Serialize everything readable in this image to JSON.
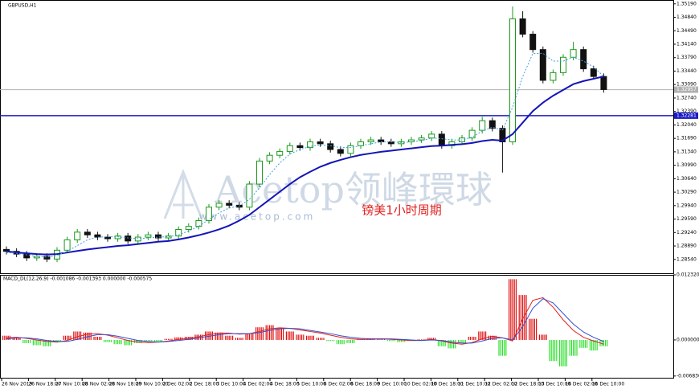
{
  "chart_data": [
    {
      "type": "candlestick",
      "title": "GBPUSD,H1",
      "open": [
        1.288,
        1.2875,
        1.2868,
        1.2858,
        1.2862,
        1.2855,
        1.2878,
        1.2905,
        1.2925,
        1.2918,
        1.2912,
        1.2908,
        1.2915,
        1.2902,
        1.2912,
        1.2918,
        1.291,
        1.2915,
        1.2932,
        1.294,
        1.2955,
        1.299,
        1.3,
        1.2995,
        1.299,
        1.305,
        1.311,
        1.3125,
        1.3135,
        1.315,
        1.3145,
        1.316,
        1.3155,
        1.314,
        1.313,
        1.315,
        1.316,
        1.3165,
        1.316,
        1.3155,
        1.316,
        1.3165,
        1.317,
        1.318,
        1.315,
        1.316,
        1.317,
        1.319,
        1.3215,
        1.3195,
        1.316,
        1.348,
        1.344,
        1.34,
        1.332,
        1.334,
        1.338,
        1.34,
        1.335,
        1.333
      ],
      "high": [
        1.2888,
        1.2883,
        1.2876,
        1.287,
        1.287,
        1.2886,
        1.2913,
        1.2933,
        1.2933,
        1.2926,
        1.292,
        1.2923,
        1.2923,
        1.292,
        1.2926,
        1.2926,
        1.2923,
        1.294,
        1.2948,
        1.2963,
        1.2998,
        1.3008,
        1.3008,
        1.3003,
        1.3058,
        1.3118,
        1.3133,
        1.3143,
        1.3158,
        1.3158,
        1.3168,
        1.3168,
        1.3163,
        1.3148,
        1.3158,
        1.3168,
        1.3173,
        1.3173,
        1.3168,
        1.3168,
        1.3173,
        1.3178,
        1.3188,
        1.3188,
        1.3168,
        1.3178,
        1.3198,
        1.3225,
        1.3223,
        1.3203,
        1.3512,
        1.35,
        1.3448,
        1.3408,
        1.3348,
        1.3388,
        1.342,
        1.3408,
        1.3358,
        1.3338
      ],
      "low": [
        1.2867,
        1.286,
        1.285,
        1.285,
        1.2847,
        1.2847,
        1.287,
        1.2897,
        1.291,
        1.2904,
        1.29,
        1.29,
        1.2894,
        1.2894,
        1.2904,
        1.2902,
        1.2902,
        1.2907,
        1.2924,
        1.2932,
        1.2947,
        1.2982,
        1.2987,
        1.2982,
        1.2982,
        1.3042,
        1.3102,
        1.3117,
        1.3127,
        1.3137,
        1.3137,
        1.3147,
        1.3132,
        1.3122,
        1.3122,
        1.3142,
        1.3152,
        1.3152,
        1.3147,
        1.3147,
        1.3152,
        1.3157,
        1.3162,
        1.3142,
        1.3142,
        1.3152,
        1.3162,
        1.3182,
        1.3187,
        1.308,
        1.3152,
        1.3432,
        1.3392,
        1.3312,
        1.3312,
        1.3332,
        1.3372,
        1.3342,
        1.3322,
        1.3288
      ],
      "close": [
        1.2875,
        1.2868,
        1.2858,
        1.2862,
        1.2855,
        1.2878,
        1.2905,
        1.2925,
        1.2918,
        1.2912,
        1.2908,
        1.2915,
        1.2902,
        1.2912,
        1.2918,
        1.291,
        1.2915,
        1.2932,
        1.294,
        1.2955,
        1.299,
        1.3,
        1.2995,
        1.299,
        1.305,
        1.311,
        1.3125,
        1.3135,
        1.315,
        1.3145,
        1.316,
        1.3155,
        1.314,
        1.313,
        1.315,
        1.316,
        1.3165,
        1.316,
        1.3155,
        1.316,
        1.3165,
        1.317,
        1.318,
        1.315,
        1.316,
        1.317,
        1.319,
        1.3215,
        1.3195,
        1.316,
        1.348,
        1.344,
        1.34,
        1.332,
        1.334,
        1.338,
        1.34,
        1.335,
        1.333,
        1.3296
      ],
      "up_color": "#1a9a1a",
      "down_color": "#111111",
      "series": [
        {
          "color": "#1414b8",
          "style": "solid",
          "values": [
            1.2875,
            1.2872,
            1.287,
            1.2868,
            1.2867,
            1.2868,
            1.2872,
            1.2876,
            1.288,
            1.2883,
            1.2886,
            1.2889,
            1.2891,
            1.2894,
            1.2897,
            1.29,
            1.2902,
            1.2906,
            1.2911,
            1.2917,
            1.2924,
            1.2932,
            1.2942,
            1.2955,
            1.297,
            1.299,
            1.301,
            1.303,
            1.305,
            1.3068,
            1.3082,
            1.3095,
            1.3105,
            1.3113,
            1.312,
            1.3126,
            1.313,
            1.3134,
            1.3137,
            1.314,
            1.3143,
            1.3146,
            1.3149,
            1.315,
            1.3152,
            1.3154,
            1.3157,
            1.3162,
            1.3165,
            1.3163,
            1.318,
            1.321,
            1.324,
            1.3262,
            1.328,
            1.3295,
            1.331,
            1.3318,
            1.3324,
            1.333
          ]
        },
        {
          "color": "#3ea0e0",
          "style": "dotted",
          "values": [
            1.2872,
            1.287,
            1.2866,
            1.2862,
            1.286,
            1.2864,
            1.2875,
            1.289,
            1.2905,
            1.2912,
            1.2913,
            1.2913,
            1.291,
            1.2908,
            1.291,
            1.2912,
            1.2913,
            1.2918,
            1.2928,
            1.294,
            1.2958,
            1.2975,
            1.2988,
            1.2993,
            1.301,
            1.304,
            1.3075,
            1.3105,
            1.3128,
            1.314,
            1.3148,
            1.3152,
            1.315,
            1.3145,
            1.3145,
            1.315,
            1.3155,
            1.316,
            1.316,
            1.3158,
            1.316,
            1.3163,
            1.317,
            1.3168,
            1.3165,
            1.3165,
            1.3172,
            1.3188,
            1.3198,
            1.319,
            1.325,
            1.333,
            1.339,
            1.339,
            1.337,
            1.337,
            1.338,
            1.337,
            1.3355,
            1.333
          ]
        }
      ],
      "hlines": [
        {
          "value": 1.32281,
          "label": "1.32281",
          "color": "#1a1ac8"
        },
        {
          "value": 1.32957,
          "label": "1.32957",
          "color": "#b0b0b0"
        }
      ],
      "ylim": [
        1.2818,
        1.3529
      ],
      "yticks": [
        {
          "value": 1.3519,
          "label": "1.35190"
        },
        {
          "value": 1.3484,
          "label": "1.34840"
        },
        {
          "value": 1.3449,
          "label": "1.34490"
        },
        {
          "value": 1.3414,
          "label": "1.34140"
        },
        {
          "value": 1.3379,
          "label": "1.33790"
        },
        {
          "value": 1.3344,
          "label": "1.33440"
        },
        {
          "value": 1.3309,
          "label": "1.33090"
        },
        {
          "value": 1.3274,
          "label": "1.32740"
        },
        {
          "value": 1.3239,
          "label": "1.32390"
        },
        {
          "value": 1.3204,
          "label": "1.32040"
        },
        {
          "value": 1.3169,
          "label": "1.31690"
        },
        {
          "value": 1.3134,
          "label": "1.31340"
        },
        {
          "value": 1.3099,
          "label": "1.30990"
        },
        {
          "value": 1.3064,
          "label": "1.30640"
        },
        {
          "value": 1.3029,
          "label": "1.30290"
        },
        {
          "value": 1.2994,
          "label": "1.29940"
        },
        {
          "value": 1.2959,
          "label": "1.29590"
        },
        {
          "value": 1.2924,
          "label": "1.29240"
        },
        {
          "value": 1.2889,
          "label": "1.28890"
        },
        {
          "value": 1.2854,
          "label": "1.28540"
        }
      ],
      "xtick_labels": [
        "26 Nov 2019",
        "26 Nov 18:00",
        "27 Nov 10:00",
        "28 Nov 02:00",
        "28 Nov 18:00",
        "29 Nov 10:00",
        "2 Dec 02:00",
        "2 Dec 18:00",
        "3 Dec 10:00",
        "4 Dec 02:00",
        "4 Dec 18:00",
        "5 Dec 10:00",
        "6 Dec 02:00",
        "6 Dec 18:00",
        "9 Dec 10:00",
        "10 Dec 02:00",
        "10 Dec 18:00",
        "11 Dec 10:00",
        "12 Dec 02:00",
        "12 Dec 18:00",
        "13 Dec 10:00",
        "16 Dec 02:00",
        "16 Dec 10:00"
      ],
      "watermark": "Acetop领峰環球",
      "watermark_url": "www.acetop.com",
      "annotation": "镑美1小时周期"
    },
    {
      "type": "macd",
      "title": "MACD_DL(12,26,9) -0.001086 -0.001393 0.000000 -0.000575",
      "values": [
        0.0008,
        0.0004,
        -0.0006,
        -0.001,
        -0.0012,
        -0.0004,
        0.0008,
        0.0016,
        0.0014,
        0.0006,
        -0.0004,
        -0.0008,
        -0.001,
        -0.0006,
        -0.0002,
        -0.0003,
        0.0002,
        0.0005,
        0.0006,
        0.001,
        0.0016,
        0.0014,
        0.0008,
        0.0004,
        0.0012,
        0.0024,
        0.0028,
        0.0022,
        0.0016,
        0.001,
        0.0008,
        0.0004,
        -0.0002,
        -0.0008,
        -0.0006,
        0.0001,
        0.0003,
        0.0002,
        -0.0002,
        -0.0004,
        -0.0002,
        0.0001,
        0.0004,
        -0.0012,
        -0.0016,
        -0.0006,
        0.0006,
        0.0016,
        0.0008,
        -0.003,
        0.0115,
        0.0085,
        0.004,
        0.001,
        -0.004,
        -0.005,
        -0.003,
        -0.0015,
        -0.002,
        -0.0012
      ],
      "up_color": "#e01010",
      "down_color": "#30e030",
      "series": [
        {
          "color": "#e02020",
          "values": [
            0.0004,
            0.0005,
            0.0003,
            0.0,
            -0.0003,
            -0.0004,
            -0.0001,
            0.0006,
            0.0011,
            0.0012,
            0.0009,
            0.0004,
            -0.0001,
            -0.0004,
            -0.0005,
            -0.0004,
            -0.0002,
            0.0001,
            0.0003,
            0.0006,
            0.001,
            0.0013,
            0.0013,
            0.0011,
            0.0012,
            0.0016,
            0.0021,
            0.0023,
            0.0022,
            0.0019,
            0.0016,
            0.0013,
            0.0009,
            0.0005,
            0.0002,
            0.0001,
            0.0001,
            0.0002,
            0.0001,
            0.0,
            -0.0001,
            -0.0001,
            0.0001,
            -0.0002,
            -0.0006,
            -0.0008,
            -0.0005,
            0.0002,
            0.0007,
            0.0004,
            -0.0002,
            0.004,
            0.0075,
            0.008,
            0.0062,
            0.0038,
            0.0018,
            0.0005,
            -0.0002,
            -0.0008
          ]
        },
        {
          "color": "#3050d0",
          "values": [
            0.0002,
            0.0004,
            0.0004,
            0.0002,
            -0.0001,
            -0.0003,
            -0.0003,
            0.0001,
            0.0006,
            0.001,
            0.001,
            0.0007,
            0.0003,
            -0.0001,
            -0.0003,
            -0.0004,
            -0.0003,
            -0.0001,
            0.0001,
            0.0004,
            0.0007,
            0.001,
            0.0012,
            0.0012,
            0.0012,
            0.0014,
            0.0018,
            0.0021,
            0.0022,
            0.0021,
            0.0018,
            0.0015,
            0.0012,
            0.0008,
            0.0005,
            0.0003,
            0.0002,
            0.0002,
            0.0002,
            0.0001,
            0.0,
            -0.0001,
            0.0,
            -0.0001,
            -0.0004,
            -0.0006,
            -0.0006,
            -0.0002,
            0.0003,
            0.0004,
            0.0,
            0.0025,
            0.006,
            0.0078,
            0.007,
            0.005,
            0.003,
            0.0015,
            0.0005,
            -0.0003
          ]
        }
      ],
      "ylim": [
        -0.00716,
        0.01232
      ],
      "yticks": [
        {
          "value": 0.01232,
          "label": "0.012320"
        },
        {
          "value": 0,
          "label": "0.000000"
        },
        {
          "value": -0.00683,
          "label": "-0.006830"
        }
      ]
    }
  ]
}
